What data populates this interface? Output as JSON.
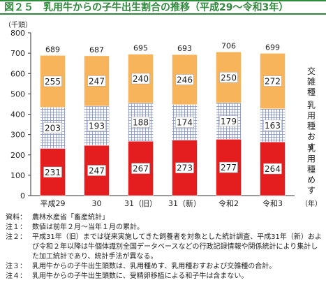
{
  "title": "図２５　乳用牛からの子牛出生割合の推移（平成29～令和3年）",
  "chart_data": {
    "type": "bar",
    "stacked": true,
    "yunit": "（千頭）",
    "ylim": [
      0,
      800
    ],
    "yticks": [
      0,
      100,
      200,
      300,
      400,
      500,
      600,
      700,
      800
    ],
    "categories": [
      "平成29",
      "30",
      "31（旧）",
      "31（新）",
      "令和2",
      "令和3"
    ],
    "xunit": "（年）",
    "totals": [
      689,
      687,
      695,
      693,
      706,
      699
    ],
    "series": [
      {
        "name": "乳用種めす",
        "values": [
          231,
          247,
          267,
          273,
          277,
          264
        ],
        "color": "#e41e1e",
        "pattern": "solid"
      },
      {
        "name": "乳用種おす",
        "values": [
          203,
          193,
          188,
          174,
          179,
          163
        ],
        "color": "#9aa6c8",
        "pattern": "grid"
      },
      {
        "name": "交雑種",
        "values": [
          255,
          247,
          240,
          246,
          250,
          272
        ],
        "color": "#f8b45a",
        "pattern": "solid"
      }
    ],
    "grid": false
  },
  "notes": [
    {
      "label": "資料：",
      "text": "農林水産省「畜産統計」"
    },
    {
      "label": "注１：",
      "text": "数値は前年２月～当年１月の累計。"
    },
    {
      "label": "注２：",
      "text": "平成31年（旧）までは従来実施してきた飼養者を対象とした統計調査、平成31年（新）および令和２年以降は牛個体識別全国データベースなどの行政記録情報や関係統計により集計した加工統計であり、統計手法が異なる。"
    },
    {
      "label": "注３：",
      "text": "乳用牛からの子牛出生頭数は、乳用種めす、乳用種おすおよび交雑種の合計。"
    },
    {
      "label": "注４：",
      "text": "乳用牛からの子牛出生頭数に、受精卵移植による和子牛は含まない。"
    }
  ]
}
